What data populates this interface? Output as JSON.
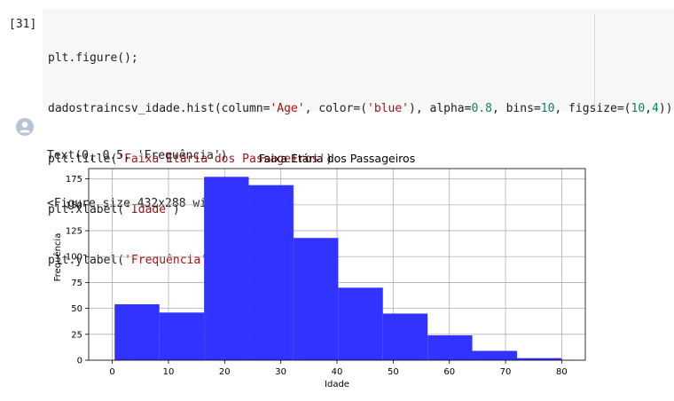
{
  "cell": {
    "execution_count": "[31]",
    "code": {
      "line1": "plt.figure();",
      "line2": {
        "a": "dadostraincsv_idade.hist(column=",
        "b": "'Age'",
        "c": ", color=(",
        "d": "'blue'",
        "e": "), alpha=",
        "f": "0.8",
        "g": ", bins=",
        "h": "10",
        "i": ", figsize=(",
        "j": "10",
        "k": ",",
        "l": "4",
        "m": "))"
      },
      "line3": {
        "a": "plt.title(",
        "b": "'Faixa Etária dos Passageiros'",
        "c": ")"
      },
      "line4": {
        "a": "plt.xlabel(",
        "b": "'Idade'",
        "c": ")"
      },
      "line5": {
        "a": "plt.ylabel(",
        "b": "'Frequência'",
        "c": ")"
      }
    }
  },
  "output": {
    "line1": "Text(0, 0.5, 'Frequência')",
    "line2": "<Figure size 432x288 with 0 Axes>"
  },
  "colors": {
    "bar_fill": "#3333ff",
    "grid": "#b0b0b0",
    "code_bg": "#f7f7f7",
    "string": "#a31515",
    "number": "#098658"
  },
  "icons": {
    "output": "output-avatar-icon"
  },
  "chart_data": {
    "type": "bar",
    "title": "Faixa Etária dos Passageiros",
    "xlabel": "Idade",
    "ylabel": "Frequência",
    "xlim": [
      -4.2,
      84.2
    ],
    "ylim": [
      0,
      185
    ],
    "grid": true,
    "bin_edges": [
      0.42,
      8.38,
      16.34,
      24.29,
      32.25,
      40.21,
      48.17,
      56.13,
      64.08,
      72.04,
      80.0
    ],
    "values": [
      54,
      46,
      177,
      169,
      118,
      70,
      45,
      24,
      9,
      2
    ],
    "xticks": [
      0,
      10,
      20,
      30,
      40,
      50,
      60,
      70,
      80
    ],
    "yticks": [
      0,
      25,
      50,
      75,
      100,
      125,
      150,
      175
    ]
  }
}
